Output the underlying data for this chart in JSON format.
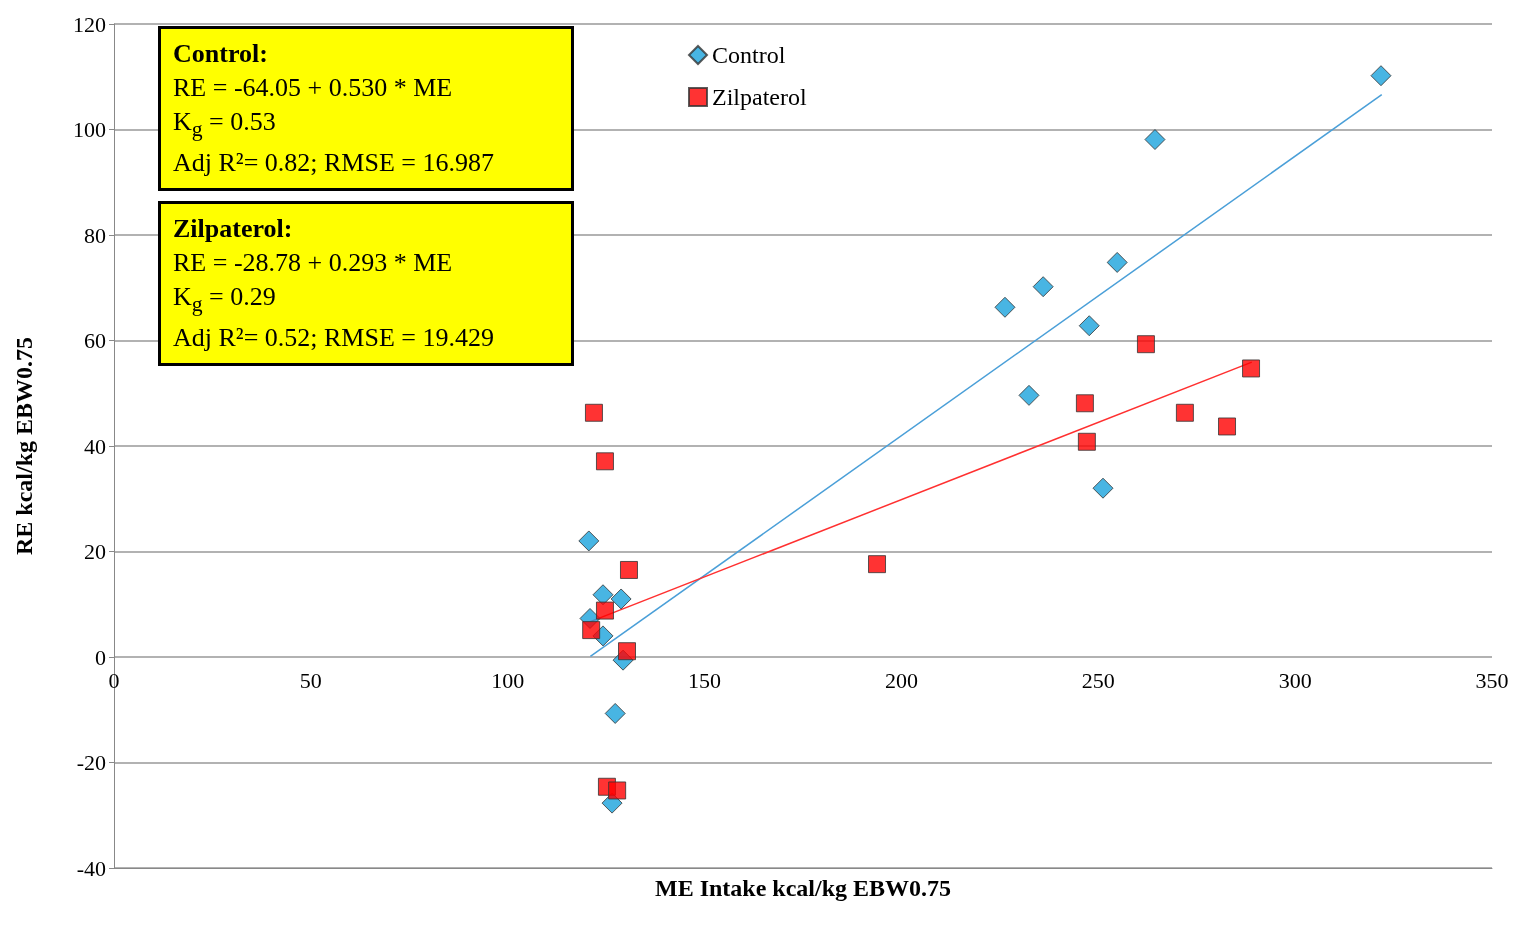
{
  "chart_data": {
    "type": "scatter",
    "xlabel": "ME Intake kcal/kg EBW0.75",
    "ylabel": "RE kcal/kg EBW0.75",
    "xlim": [
      0,
      350
    ],
    "xticks": [
      0,
      50,
      100,
      150,
      200,
      250,
      300,
      350
    ],
    "ylim": [
      -40,
      120
    ],
    "yticks": [
      -40,
      -20,
      0,
      20,
      40,
      60,
      80,
      100,
      120
    ],
    "grid": "y",
    "legend": "top",
    "annotations": [
      "Control:\nRE = -64.05 +  0.530 * ME\nK$_{g}$ = 0.53\nAdj R²= 0.82; RMSE = 16.987",
      "Zilpaterol:\nRE = -28.78 +  0.293 * ME\nK$_{g}$ = 0.29\nAdj R²= 0.52; RMSE = 19.429"
    ],
    "series": [
      {
        "name": "Control",
        "color": "#1aa3dc",
        "marker": "diamond",
        "x": [
          120.6,
          124.2,
          128.8,
          120.9,
          124.2,
          129.3,
          127.3,
          126.5,
          226.3,
          236.0,
          254.8,
          247.7,
          232.4,
          251.2,
          264.4,
          321.8
        ],
        "values": [
          22.0,
          11.8,
          11.0,
          7.3,
          4.0,
          -0.6,
          -10.7,
          -27.7,
          66.3,
          70.2,
          74.8,
          62.8,
          49.6,
          32.0,
          98.1,
          110.2
        ]
      },
      {
        "name": "Zilpaterol",
        "color": "#ff0000",
        "marker": "square",
        "x": [
          121.9,
          124.7,
          130.8,
          124.7,
          121.2,
          130.3,
          125.2,
          127.8,
          193.8,
          261.6,
          262.1,
          246.6,
          247.1,
          272.0,
          282.7,
          288.8
        ],
        "values": [
          46.3,
          37.1,
          16.5,
          8.8,
          5.1,
          1.1,
          -24.6,
          -25.3,
          17.6,
          null,
          59.3,
          48.1,
          40.8,
          46.3,
          43.7,
          54.7
        ]
      },
      {
        "type": "line",
        "color": "#4a9fd8",
        "marker": "none",
        "x": [
          121,
          322
        ],
        "values": [
          0.1,
          106.6
        ]
      },
      {
        "type": "line",
        "color": "#ff3030",
        "marker": "none",
        "x": [
          121,
          289
        ],
        "values": [
          6.7,
          55.9
        ]
      }
    ]
  }
}
